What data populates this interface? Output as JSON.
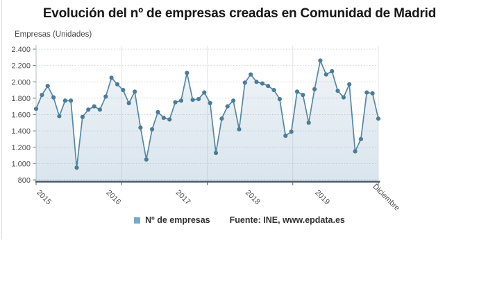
{
  "title": "Evolución del nº de empresas creadas en Comunidad de Madrid",
  "y_axis_unit_label": "Empresas (Unidades)",
  "legend": {
    "series_label": "Nº de empresas",
    "source_label": "Fuente: INE, www.epdata.es",
    "swatch_color": "#78a9c6"
  },
  "colors": {
    "line": "#5587a3",
    "marker": "#4d7c97",
    "area_fill_top": "rgba(120,160,190,0.10)",
    "area_fill_bottom": "rgba(120,160,190,0.28)",
    "h_grid": "#d0d5d9",
    "v_grid": "#e2e6e9",
    "x_axis_line": "#4d5c68",
    "y_axis_line": "#b6bdc3",
    "tick": "#7f8a93",
    "axis_text": "#4d4d4d"
  },
  "chart_data": {
    "type": "area",
    "title": "Evolución del nº de empresas creadas en Comunidad de Madrid",
    "ylabel": "Empresas (Unidades)",
    "ylim": [
      800,
      2400
    ],
    "grid": true,
    "legend_position": "bottom",
    "y_ticks": [
      800,
      1000,
      1200,
      1400,
      1600,
      1800,
      2000,
      2200,
      2400
    ],
    "y_tick_labels": [
      "800",
      "1.000",
      "1.200",
      "1.400",
      "1.600",
      "1.800",
      "2.000",
      "2.200",
      "2.400"
    ],
    "x_tick_labels": [
      "2015",
      "2016",
      "2017",
      "2018",
      "2019",
      "Diciembre"
    ],
    "x_period": "monthly, January 2015 - December 2019",
    "series": [
      {
        "name": "Nº de empresas",
        "values": [
          1670,
          1840,
          1950,
          1810,
          1580,
          1770,
          1770,
          950,
          1570,
          1660,
          1700,
          1660,
          1820,
          2050,
          1970,
          1900,
          1740,
          1880,
          1440,
          1050,
          1420,
          1630,
          1560,
          1540,
          1750,
          1770,
          2110,
          1780,
          1790,
          1870,
          1740,
          1130,
          1550,
          1700,
          1770,
          1420,
          1990,
          2090,
          2000,
          1980,
          1950,
          1900,
          1790,
          1340,
          1390,
          1880,
          1840,
          1500,
          1910,
          2260,
          2090,
          2130,
          1890,
          1810,
          1970,
          1150,
          1300,
          1870,
          1860,
          1550
        ]
      }
    ]
  }
}
